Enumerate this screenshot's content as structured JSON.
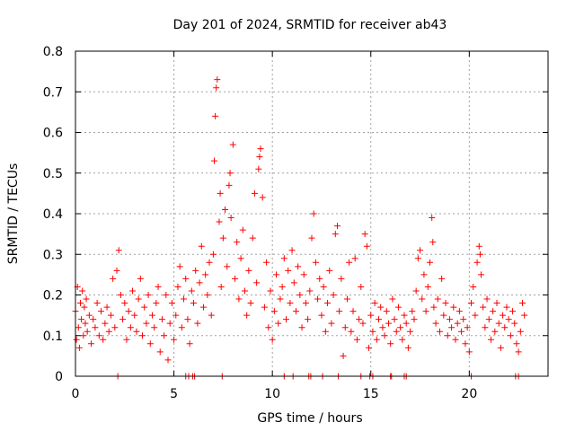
{
  "chart_data": {
    "type": "scatter",
    "title": "Day 201 of 2024, SRMTID for receiver ab43",
    "xlabel": "GPS time / hours",
    "ylabel": "SRMTID / TECUs",
    "xlim": [
      0,
      24
    ],
    "ylim": [
      0,
      0.8
    ],
    "xticks": [
      0,
      5,
      10,
      15,
      20
    ],
    "xtick_labels": [
      "0",
      "5",
      "10",
      "15",
      "20"
    ],
    "yticks": [
      0,
      0.1,
      0.2,
      0.3,
      0.4,
      0.5,
      0.6,
      0.7,
      0.8
    ],
    "ytick_labels": [
      "0",
      "0.1",
      "0.2",
      "0.3",
      "0.4",
      "0.5",
      "0.6",
      "0.7",
      "0.8"
    ],
    "grid": true,
    "marker": "+",
    "color": "#ff0000",
    "series": [
      {
        "name": "SRMTID",
        "points": [
          [
            0.0,
            0.16
          ],
          [
            0.05,
            0.09
          ],
          [
            0.1,
            0.22
          ],
          [
            0.15,
            0.12
          ],
          [
            0.2,
            0.07
          ],
          [
            0.25,
            0.18
          ],
          [
            0.3,
            0.14
          ],
          [
            0.35,
            0.21
          ],
          [
            0.4,
            0.1
          ],
          [
            0.45,
            0.17
          ],
          [
            0.5,
            0.13
          ],
          [
            0.55,
            0.19
          ],
          [
            0.6,
            0.11
          ],
          [
            0.7,
            0.15
          ],
          [
            0.8,
            0.08
          ],
          [
            0.9,
            0.14
          ],
          [
            1.0,
            0.12
          ],
          [
            1.1,
            0.18
          ],
          [
            1.2,
            0.1
          ],
          [
            1.3,
            0.16
          ],
          [
            1.4,
            0.09
          ],
          [
            1.5,
            0.13
          ],
          [
            1.6,
            0.17
          ],
          [
            1.7,
            0.11
          ],
          [
            1.8,
            0.15
          ],
          [
            1.9,
            0.24
          ],
          [
            2.0,
            0.12
          ],
          [
            2.1,
            0.26
          ],
          [
            2.2,
            0.31
          ],
          [
            2.3,
            0.2
          ],
          [
            2.4,
            0.14
          ],
          [
            2.5,
            0.18
          ],
          [
            2.6,
            0.09
          ],
          [
            2.7,
            0.16
          ],
          [
            2.8,
            0.12
          ],
          [
            2.9,
            0.21
          ],
          [
            3.0,
            0.15
          ],
          [
            3.1,
            0.11
          ],
          [
            3.2,
            0.19
          ],
          [
            3.3,
            0.24
          ],
          [
            3.4,
            0.1
          ],
          [
            3.5,
            0.17
          ],
          [
            3.6,
            0.13
          ],
          [
            3.7,
            0.2
          ],
          [
            3.8,
            0.08
          ],
          [
            3.9,
            0.15
          ],
          [
            4.0,
            0.12
          ],
          [
            4.1,
            0.18
          ],
          [
            4.2,
            0.22
          ],
          [
            4.3,
            0.06
          ],
          [
            4.4,
            0.14
          ],
          [
            4.5,
            0.1
          ],
          [
            4.6,
            0.2
          ],
          [
            4.7,
            0.04
          ],
          [
            4.8,
            0.13
          ],
          [
            4.9,
            0.18
          ],
          [
            5.0,
            0.09
          ],
          [
            5.1,
            0.15
          ],
          [
            5.2,
            0.22
          ],
          [
            5.3,
            0.27
          ],
          [
            5.4,
            0.12
          ],
          [
            5.5,
            0.19
          ],
          [
            5.6,
            0.24
          ],
          [
            5.7,
            0.14
          ],
          [
            5.8,
            0.08
          ],
          [
            5.9,
            0.21
          ],
          [
            6.0,
            0.18
          ],
          [
            6.1,
            0.26
          ],
          [
            6.2,
            0.13
          ],
          [
            6.3,
            0.23
          ],
          [
            6.4,
            0.32
          ],
          [
            6.5,
            0.17
          ],
          [
            6.6,
            0.25
          ],
          [
            6.7,
            0.2
          ],
          [
            6.8,
            0.28
          ],
          [
            6.9,
            0.15
          ],
          [
            7.0,
            0.3
          ],
          [
            7.05,
            0.53
          ],
          [
            7.1,
            0.64
          ],
          [
            7.15,
            0.71
          ],
          [
            7.2,
            0.73
          ],
          [
            7.3,
            0.38
          ],
          [
            7.35,
            0.45
          ],
          [
            7.4,
            0.22
          ],
          [
            7.5,
            0.34
          ],
          [
            7.6,
            0.41
          ],
          [
            7.7,
            0.27
          ],
          [
            7.8,
            0.47
          ],
          [
            7.85,
            0.5
          ],
          [
            7.9,
            0.39
          ],
          [
            8.0,
            0.57
          ],
          [
            8.1,
            0.24
          ],
          [
            8.2,
            0.33
          ],
          [
            8.3,
            0.19
          ],
          [
            8.4,
            0.29
          ],
          [
            8.5,
            0.36
          ],
          [
            8.6,
            0.21
          ],
          [
            8.7,
            0.15
          ],
          [
            8.8,
            0.26
          ],
          [
            8.9,
            0.18
          ],
          [
            9.0,
            0.34
          ],
          [
            9.1,
            0.45
          ],
          [
            9.2,
            0.23
          ],
          [
            9.3,
            0.51
          ],
          [
            9.35,
            0.54
          ],
          [
            9.4,
            0.56
          ],
          [
            9.5,
            0.44
          ],
          [
            9.6,
            0.17
          ],
          [
            9.7,
            0.28
          ],
          [
            9.8,
            0.12
          ],
          [
            9.9,
            0.21
          ],
          [
            10.0,
            0.09
          ],
          [
            10.1,
            0.16
          ],
          [
            10.2,
            0.25
          ],
          [
            10.3,
            0.13
          ],
          [
            10.4,
            0.19
          ],
          [
            10.5,
            0.22
          ],
          [
            10.6,
            0.29
          ],
          [
            10.7,
            0.14
          ],
          [
            10.8,
            0.26
          ],
          [
            10.9,
            0.18
          ],
          [
            11.0,
            0.31
          ],
          [
            11.1,
            0.23
          ],
          [
            11.2,
            0.16
          ],
          [
            11.3,
            0.27
          ],
          [
            11.4,
            0.2
          ],
          [
            11.5,
            0.12
          ],
          [
            11.6,
            0.25
          ],
          [
            11.7,
            0.18
          ],
          [
            11.8,
            0.14
          ],
          [
            11.9,
            0.21
          ],
          [
            12.0,
            0.34
          ],
          [
            12.1,
            0.4
          ],
          [
            12.2,
            0.28
          ],
          [
            12.3,
            0.19
          ],
          [
            12.4,
            0.24
          ],
          [
            12.5,
            0.15
          ],
          [
            12.6,
            0.22
          ],
          [
            12.7,
            0.11
          ],
          [
            12.8,
            0.18
          ],
          [
            12.9,
            0.26
          ],
          [
            13.0,
            0.13
          ],
          [
            13.1,
            0.2
          ],
          [
            13.2,
            0.35
          ],
          [
            13.3,
            0.37
          ],
          [
            13.4,
            0.16
          ],
          [
            13.5,
            0.24
          ],
          [
            13.6,
            0.05
          ],
          [
            13.7,
            0.12
          ],
          [
            13.8,
            0.19
          ],
          [
            13.9,
            0.28
          ],
          [
            14.0,
            0.11
          ],
          [
            14.1,
            0.16
          ],
          [
            14.2,
            0.29
          ],
          [
            14.3,
            0.09
          ],
          [
            14.4,
            0.14
          ],
          [
            14.5,
            0.22
          ],
          [
            14.6,
            0.13
          ],
          [
            14.7,
            0.35
          ],
          [
            14.8,
            0.32
          ],
          [
            14.9,
            0.07
          ],
          [
            15.0,
            0.15
          ],
          [
            15.1,
            0.11
          ],
          [
            15.2,
            0.18
          ],
          [
            15.3,
            0.09
          ],
          [
            15.4,
            0.14
          ],
          [
            15.5,
            0.17
          ],
          [
            15.6,
            0.12
          ],
          [
            15.7,
            0.1
          ],
          [
            15.8,
            0.16
          ],
          [
            15.9,
            0.13
          ],
          [
            16.0,
            0.08
          ],
          [
            16.1,
            0.19
          ],
          [
            16.2,
            0.14
          ],
          [
            16.3,
            0.11
          ],
          [
            16.4,
            0.17
          ],
          [
            16.5,
            0.12
          ],
          [
            16.6,
            0.09
          ],
          [
            16.7,
            0.15
          ],
          [
            16.8,
            0.13
          ],
          [
            16.9,
            0.07
          ],
          [
            17.0,
            0.11
          ],
          [
            17.1,
            0.16
          ],
          [
            17.2,
            0.14
          ],
          [
            17.3,
            0.21
          ],
          [
            17.4,
            0.29
          ],
          [
            17.5,
            0.31
          ],
          [
            17.6,
            0.19
          ],
          [
            17.7,
            0.25
          ],
          [
            17.8,
            0.16
          ],
          [
            17.9,
            0.22
          ],
          [
            18.0,
            0.28
          ],
          [
            18.1,
            0.39
          ],
          [
            18.15,
            0.33
          ],
          [
            18.2,
            0.17
          ],
          [
            18.3,
            0.13
          ],
          [
            18.4,
            0.19
          ],
          [
            18.5,
            0.11
          ],
          [
            18.6,
            0.24
          ],
          [
            18.7,
            0.15
          ],
          [
            18.8,
            0.18
          ],
          [
            18.9,
            0.1
          ],
          [
            19.0,
            0.14
          ],
          [
            19.1,
            0.12
          ],
          [
            19.2,
            0.17
          ],
          [
            19.3,
            0.09
          ],
          [
            19.4,
            0.13
          ],
          [
            19.5,
            0.16
          ],
          [
            19.6,
            0.11
          ],
          [
            19.7,
            0.14
          ],
          [
            19.8,
            0.08
          ],
          [
            19.9,
            0.12
          ],
          [
            20.0,
            0.06
          ],
          [
            20.1,
            0.18
          ],
          [
            20.2,
            0.22
          ],
          [
            20.3,
            0.15
          ],
          [
            20.4,
            0.28
          ],
          [
            20.5,
            0.32
          ],
          [
            20.55,
            0.3
          ],
          [
            20.6,
            0.25
          ],
          [
            20.7,
            0.17
          ],
          [
            20.8,
            0.12
          ],
          [
            20.9,
            0.19
          ],
          [
            21.0,
            0.14
          ],
          [
            21.1,
            0.09
          ],
          [
            21.2,
            0.16
          ],
          [
            21.3,
            0.11
          ],
          [
            21.4,
            0.18
          ],
          [
            21.5,
            0.13
          ],
          [
            21.6,
            0.07
          ],
          [
            21.7,
            0.15
          ],
          [
            21.8,
            0.12
          ],
          [
            21.9,
            0.17
          ],
          [
            22.0,
            0.14
          ],
          [
            22.1,
            0.1
          ],
          [
            22.2,
            0.16
          ],
          [
            22.3,
            0.13
          ],
          [
            22.4,
            0.08
          ],
          [
            22.5,
            0.06
          ],
          [
            22.6,
            0.11
          ],
          [
            22.7,
            0.18
          ],
          [
            22.8,
            0.15
          ]
        ]
      }
    ],
    "baseline_markers_x": [
      2.15,
      5.6,
      5.75,
      5.95,
      6.05,
      7.45,
      10.6,
      11.05,
      11.85,
      11.95,
      12.55,
      13.35,
      14.5,
      14.95,
      15.1,
      16.0,
      16.05,
      16.7,
      16.8,
      20.1,
      22.35,
      22.5
    ]
  }
}
